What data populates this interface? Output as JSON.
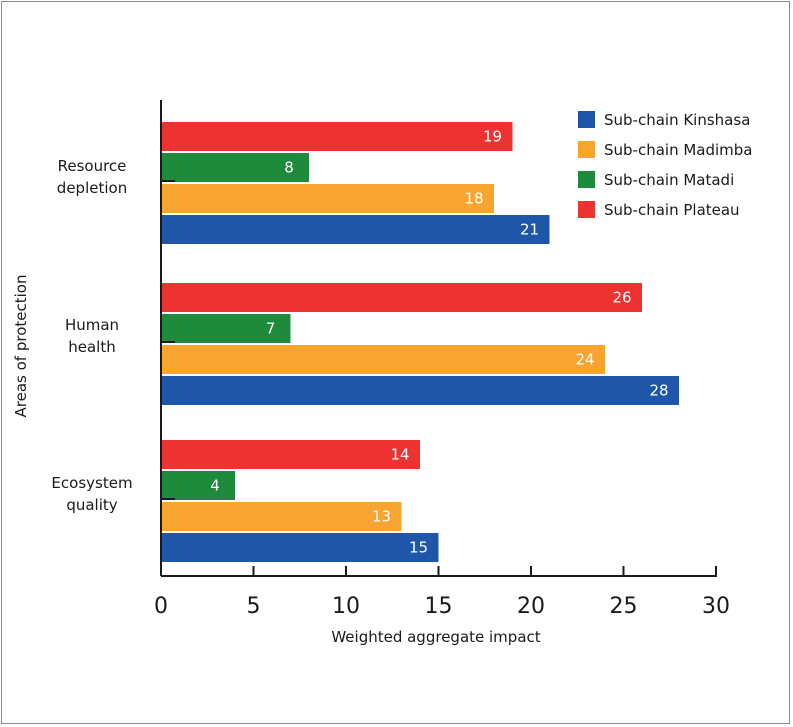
{
  "chart_data": {
    "type": "bar",
    "orientation": "horizontal",
    "xlabel": "Weighted aggregate impact",
    "ylabel": "Areas of protection",
    "xlim": [
      0,
      30
    ],
    "xticks": [
      0,
      5,
      10,
      15,
      20,
      25,
      30
    ],
    "grid": false,
    "legend_position": "top-right",
    "categories": [
      [
        "Resource",
        "depletion"
      ],
      [
        "Human",
        "health"
      ],
      [
        "Ecosystem",
        "quality"
      ]
    ],
    "series": [
      {
        "name": "Sub-chain Plateau",
        "color": "#ee3131",
        "values": [
          19,
          26,
          14
        ]
      },
      {
        "name": "Sub-chain Matadi",
        "color": "#1e8a3c",
        "values": [
          8,
          7,
          4
        ]
      },
      {
        "name": "Sub-chain Madimba",
        "color": "#f7a530",
        "values": [
          18,
          24,
          13
        ]
      },
      {
        "name": "Sub-chain Kinshasa",
        "color": "#1f56a8",
        "values": [
          21,
          28,
          15
        ]
      }
    ],
    "legend_order": [
      "Sub-chain Kinshasa",
      "Sub-chain Madimba",
      "Sub-chain Matadi",
      "Sub-chain Plateau"
    ]
  }
}
